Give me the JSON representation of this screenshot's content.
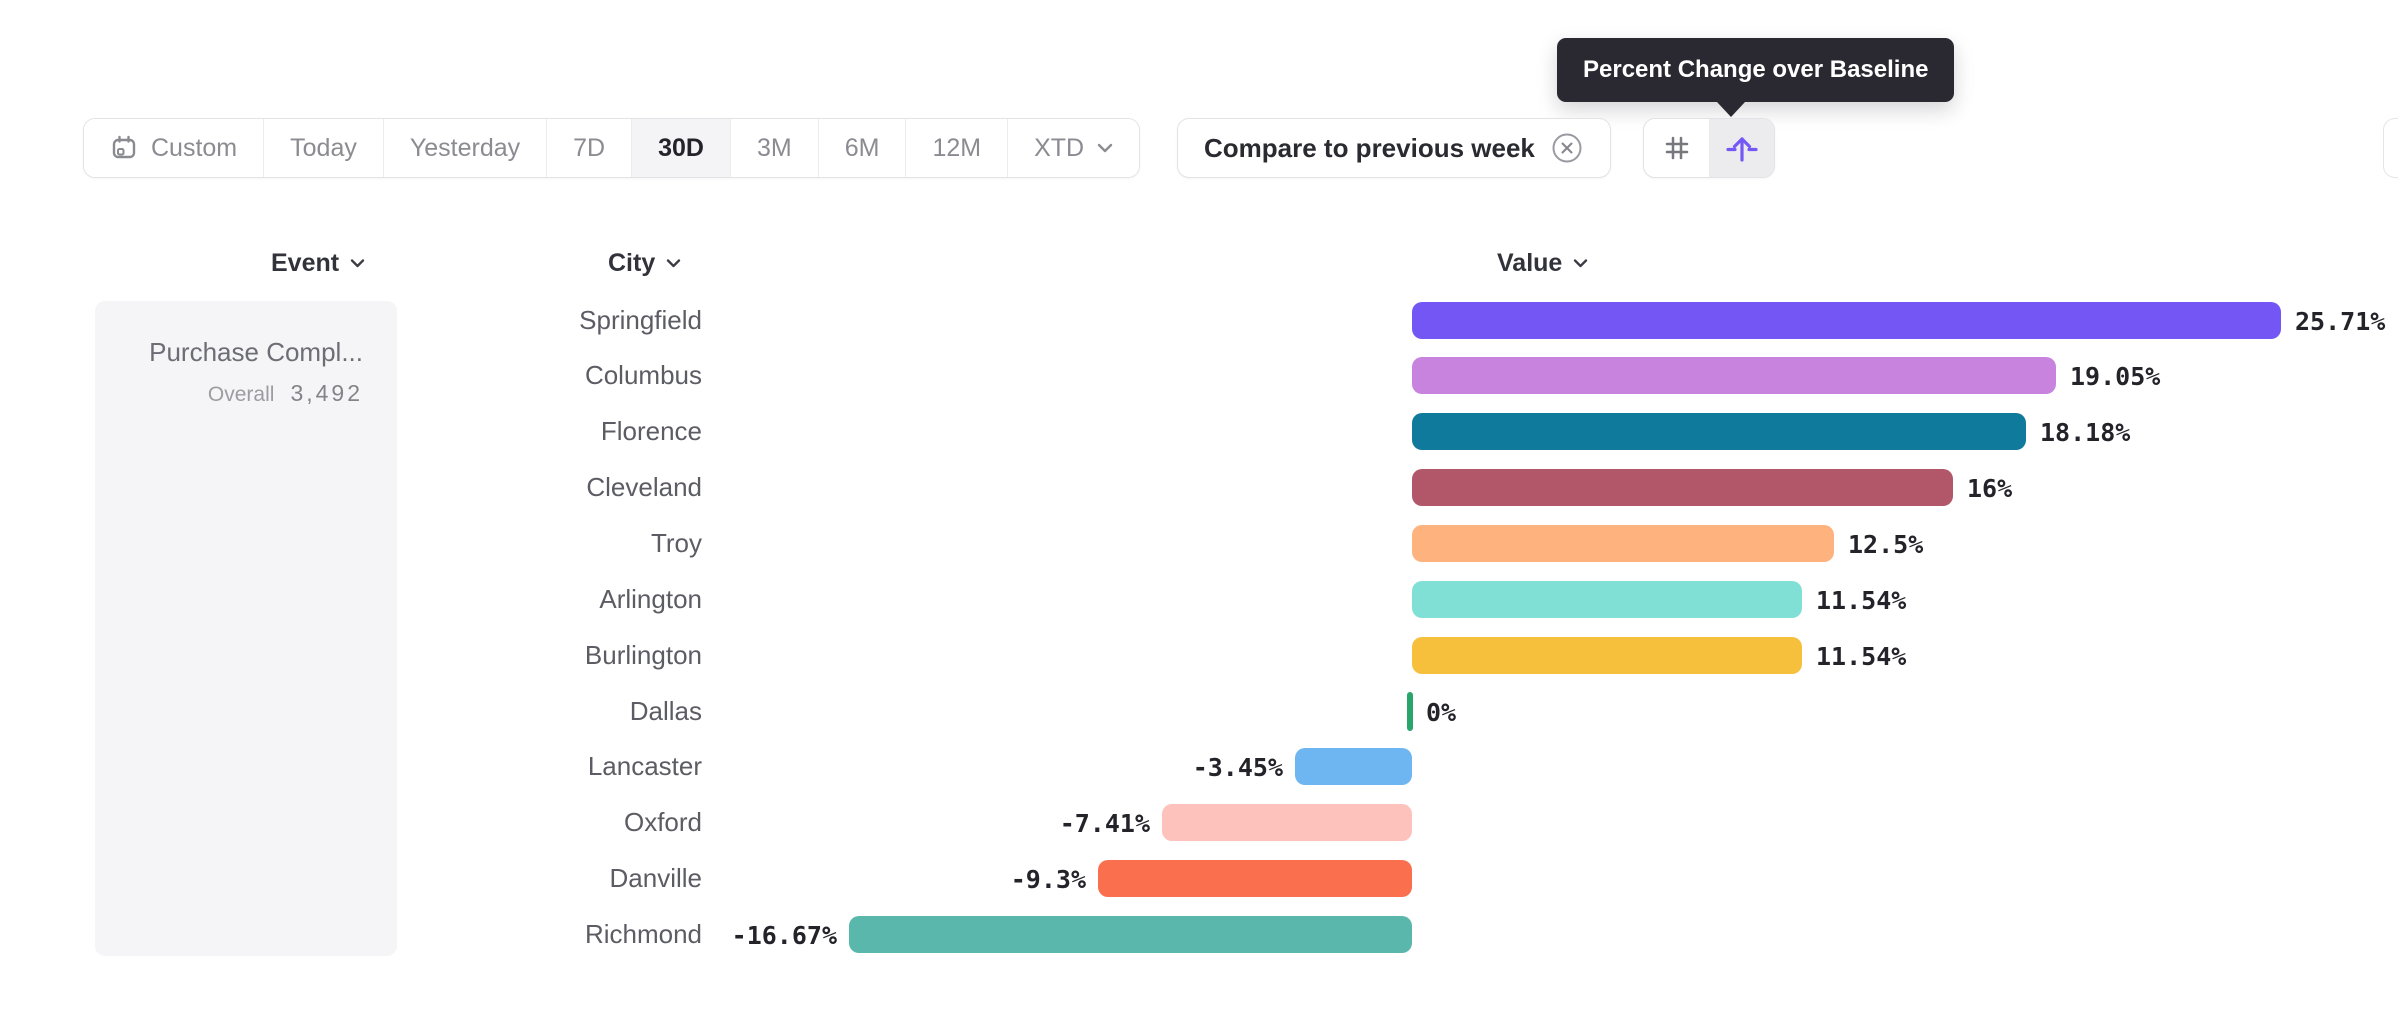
{
  "tooltip": {
    "text": "Percent Change over Baseline"
  },
  "toolbar": {
    "date_ranges": [
      {
        "label": "Custom",
        "selected": false
      },
      {
        "label": "Today",
        "selected": false
      },
      {
        "label": "Yesterday",
        "selected": false
      },
      {
        "label": "7D",
        "selected": false
      },
      {
        "label": "30D",
        "selected": true
      },
      {
        "label": "3M",
        "selected": false
      },
      {
        "label": "6M",
        "selected": false
      },
      {
        "label": "12M",
        "selected": false
      },
      {
        "label": "XTD",
        "selected": false
      }
    ],
    "compare_filter": {
      "label": "Compare to previous week"
    },
    "view_toggle": {
      "options": [
        {
          "icon": "number-grid-icon",
          "selected": false
        },
        {
          "icon": "baseline-arrow-icon",
          "selected": true,
          "tooltip": "Percent Change over Baseline"
        }
      ]
    },
    "accent_color": "#7559f6"
  },
  "table": {
    "columns": [
      {
        "label": "Event"
      },
      {
        "label": "City"
      },
      {
        "label": "Value"
      }
    ],
    "event_cell": {
      "title": "Purchase Compl...",
      "metric_label": "Overall",
      "metric_value": "3,492"
    }
  },
  "chart_data": {
    "type": "bar",
    "orientation": "horizontal",
    "series_name": "Value",
    "unit": "%",
    "categories": [
      "Springfield",
      "Columbus",
      "Florence",
      "Cleveland",
      "Troy",
      "Arlington",
      "Burlington",
      "Dallas",
      "Lancaster",
      "Oxford",
      "Danville",
      "Richmond"
    ],
    "values": [
      25.71,
      19.05,
      18.18,
      16,
      12.5,
      11.54,
      11.54,
      0,
      -3.45,
      -7.41,
      -9.3,
      -16.67
    ],
    "value_labels": [
      "25.71%",
      "19.05%",
      "18.18%",
      "16%",
      "12.5%",
      "11.54%",
      "11.54%",
      "0%",
      "-3.45%",
      "-7.41%",
      "-9.3%",
      "-16.67%"
    ],
    "bar_colors": [
      "#7456f5",
      "#c783de",
      "#0f7a9c",
      "#b25669",
      "#feb27d",
      "#81e0d5",
      "#f6bf3c",
      "#2aa56c",
      "#6db6f2",
      "#fcc2bb",
      "#fa704e",
      "#5ab7ab"
    ],
    "baseline": 0,
    "axis_range": [
      -16.67,
      25.71
    ],
    "grid": false,
    "legend": false
  }
}
